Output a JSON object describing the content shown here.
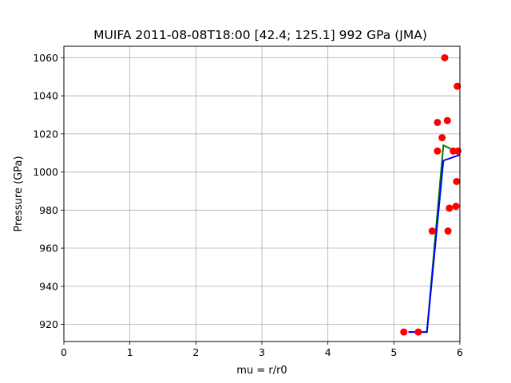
{
  "chart_data": {
    "type": "scatter",
    "title": "MUIFA 2011-08-08T18:00 [42.4; 125.1] 992 GPa (JMA)",
    "xlabel": "mu = r/r0",
    "ylabel": "Pressure (GPa)",
    "xlim": [
      0,
      6
    ],
    "ylim": [
      911,
      1066
    ],
    "xticks": [
      0,
      1,
      2,
      3,
      4,
      5,
      6
    ],
    "yticks": [
      920,
      940,
      960,
      980,
      1000,
      1020,
      1040,
      1060
    ],
    "grid": true,
    "colors": {
      "points": "#ff0000",
      "blue_line": "#0000ff",
      "green_line": "#008000",
      "grid": "#b0b0b0"
    },
    "series": [
      {
        "kind": "scatter",
        "color": "#ff0000",
        "points": [
          [
            5.15,
            916
          ],
          [
            5.37,
            916
          ],
          [
            5.58,
            969
          ],
          [
            5.66,
            1026
          ],
          [
            5.66,
            1011
          ],
          [
            5.73,
            1018
          ],
          [
            5.77,
            1060
          ],
          [
            5.81,
            1027
          ],
          [
            5.82,
            969
          ],
          [
            5.84,
            981
          ],
          [
            5.9,
            1011
          ],
          [
            5.94,
            982
          ],
          [
            5.95,
            995
          ],
          [
            5.96,
            1045
          ],
          [
            5.97,
            1011
          ]
        ]
      },
      {
        "kind": "line",
        "color": "#008000",
        "points": [
          [
            5.22,
            916
          ],
          [
            5.5,
            916
          ],
          [
            5.75,
            1014
          ],
          [
            6.0,
            1010
          ]
        ]
      },
      {
        "kind": "line",
        "color": "#0000ff",
        "points": [
          [
            5.22,
            916
          ],
          [
            5.5,
            916
          ],
          [
            5.75,
            1006
          ],
          [
            6.0,
            1009
          ]
        ]
      }
    ]
  }
}
